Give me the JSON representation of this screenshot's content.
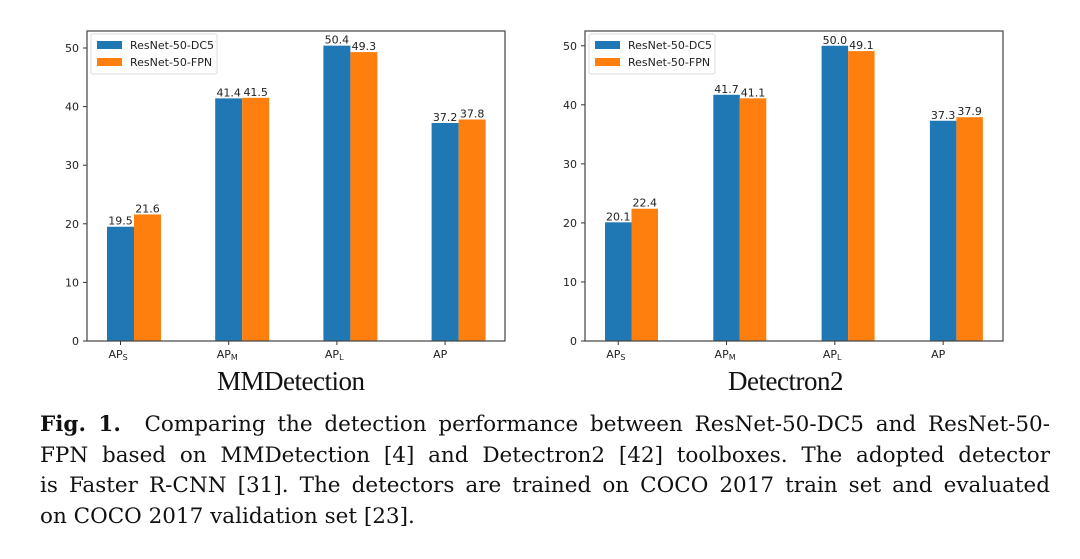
{
  "chart_data": [
    {
      "type": "bar",
      "title": "MMDetection",
      "xlabel": "",
      "ylabel": "",
      "categories": [
        "AP_S",
        "AP_M",
        "AP_L",
        "AP"
      ],
      "category_labels": [
        {
          "base": "AP",
          "sub": "S"
        },
        {
          "base": "AP",
          "sub": "M"
        },
        {
          "base": "AP",
          "sub": "L"
        },
        {
          "base": "AP",
          "sub": ""
        }
      ],
      "series": [
        {
          "name": "ResNet-50-DC5",
          "color": "#1f77b4",
          "values": [
            19.5,
            41.4,
            50.4,
            37.2
          ]
        },
        {
          "name": "ResNet-50-FPN",
          "color": "#ff7f0e",
          "values": [
            21.6,
            41.5,
            49.3,
            37.8
          ]
        }
      ],
      "ylim": [
        0,
        52.9
      ],
      "yticks": [
        0,
        10,
        20,
        30,
        40,
        50
      ],
      "grid": false,
      "legend": "top-left",
      "data_labels": true
    },
    {
      "type": "bar",
      "title": "Detectron2",
      "xlabel": "",
      "ylabel": "",
      "categories": [
        "AP_S",
        "AP_M",
        "AP_L",
        "AP"
      ],
      "category_labels": [
        {
          "base": "AP",
          "sub": "S"
        },
        {
          "base": "AP",
          "sub": "M"
        },
        {
          "base": "AP",
          "sub": "L"
        },
        {
          "base": "AP",
          "sub": ""
        }
      ],
      "series": [
        {
          "name": "ResNet-50-DC5",
          "color": "#1f77b4",
          "values": [
            20.1,
            41.7,
            50.0,
            37.3
          ]
        },
        {
          "name": "ResNet-50-FPN",
          "color": "#ff7f0e",
          "values": [
            22.4,
            41.1,
            49.1,
            37.9
          ]
        }
      ],
      "ylim": [
        0,
        52.5
      ],
      "yticks": [
        0,
        10,
        20,
        30,
        40,
        50
      ],
      "grid": false,
      "legend": "top-left",
      "data_labels": true
    }
  ],
  "caption": {
    "label": "Fig. 1.",
    "lines": [
      "Comparing the detection performance between ResNet-50-DC5 and ResNet-50-",
      "FPN based on MMDetection [4] and Detectron2 [42] toolboxes. The adopted detector",
      "is Faster R-CNN [31]. The detectors are trained on COCO 2017 train set and evaluated",
      "on COCO 2017 validation set [23]."
    ]
  }
}
